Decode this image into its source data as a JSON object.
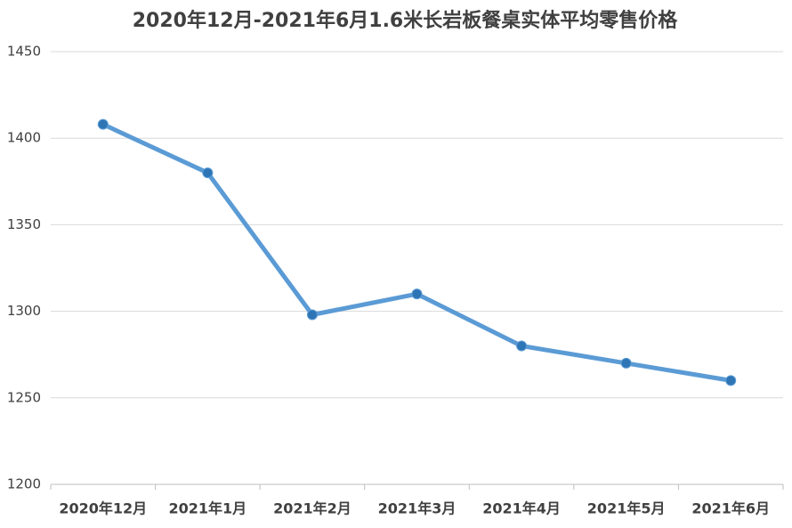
{
  "chart_data": {
    "type": "line",
    "title": "2020年12月-2021年6月1.6米长岩板餐桌实体平均零售价格",
    "categories": [
      "2020年12月",
      "2021年1月",
      "2021年2月",
      "2021年3月",
      "2021年4月",
      "2021年5月",
      "2021年6月"
    ],
    "series": [
      {
        "color": "#5b9bd5",
        "marker_color": "#2e75b6",
        "values": [
          1408,
          1380,
          1298,
          1310,
          1280,
          1270,
          1260
        ]
      }
    ],
    "ylim": [
      1200,
      1450
    ],
    "yticks": [
      1200,
      1250,
      1300,
      1350,
      1400,
      1450
    ],
    "grid": true
  }
}
